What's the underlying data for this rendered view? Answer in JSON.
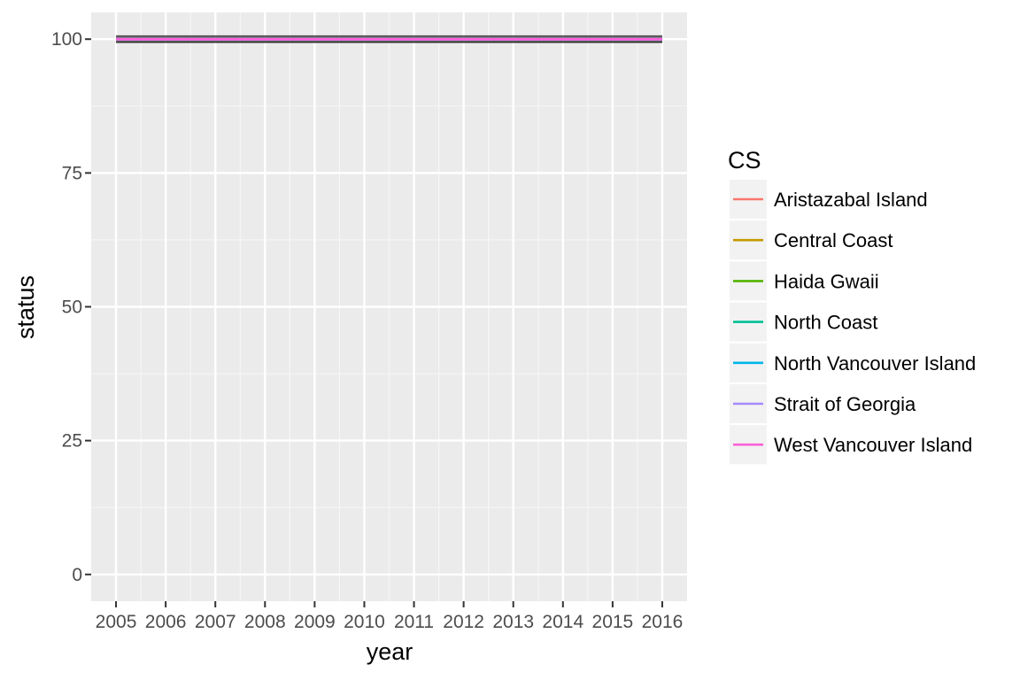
{
  "chart_data": {
    "type": "line",
    "xlabel": "year",
    "ylabel": "status",
    "x": [
      2005,
      2006,
      2007,
      2008,
      2009,
      2010,
      2011,
      2012,
      2013,
      2014,
      2015,
      2016
    ],
    "x_tick_labels": [
      "2005",
      "2006",
      "2007",
      "2008",
      "2009",
      "2010",
      "2011",
      "2012",
      "2013",
      "2014",
      "2015",
      "2016"
    ],
    "y_ticks": [
      0,
      25,
      50,
      75,
      100
    ],
    "y_tick_labels": [
      "0",
      "25",
      "50",
      "75",
      "100"
    ],
    "xlim": [
      2004.5,
      2016.5
    ],
    "ylim": [
      -5,
      105
    ],
    "grid": true,
    "legend": {
      "title": "CS",
      "placement": "right"
    },
    "series": [
      {
        "name": "Aristazabal Island",
        "color": "#F8766D",
        "values": [
          100,
          100,
          100,
          100,
          100,
          100,
          100,
          100,
          100,
          100,
          100,
          100
        ]
      },
      {
        "name": "Central Coast",
        "color": "#C49A00",
        "values": [
          100,
          100,
          100,
          100,
          100,
          100,
          100,
          100,
          100,
          100,
          100,
          100
        ]
      },
      {
        "name": "Haida Gwaii",
        "color": "#53B400",
        "values": [
          100,
          100,
          100,
          100,
          100,
          100,
          100,
          100,
          100,
          100,
          100,
          100
        ]
      },
      {
        "name": "North Coast",
        "color": "#00C094",
        "values": [
          100,
          100,
          100,
          100,
          100,
          100,
          100,
          100,
          100,
          100,
          100,
          100
        ]
      },
      {
        "name": "North Vancouver Island",
        "color": "#00B6EB",
        "values": [
          100,
          100,
          100,
          100,
          100,
          100,
          100,
          100,
          100,
          100,
          100,
          100
        ]
      },
      {
        "name": "Strait of Georgia",
        "color": "#A58AFF",
        "values": [
          100,
          100,
          100,
          100,
          100,
          100,
          100,
          100,
          100,
          100,
          100,
          100
        ]
      },
      {
        "name": "West Vancouver Island",
        "color": "#FB61D7",
        "values": [
          100,
          100,
          100,
          100,
          100,
          100,
          100,
          100,
          100,
          100,
          100,
          100
        ]
      }
    ]
  }
}
